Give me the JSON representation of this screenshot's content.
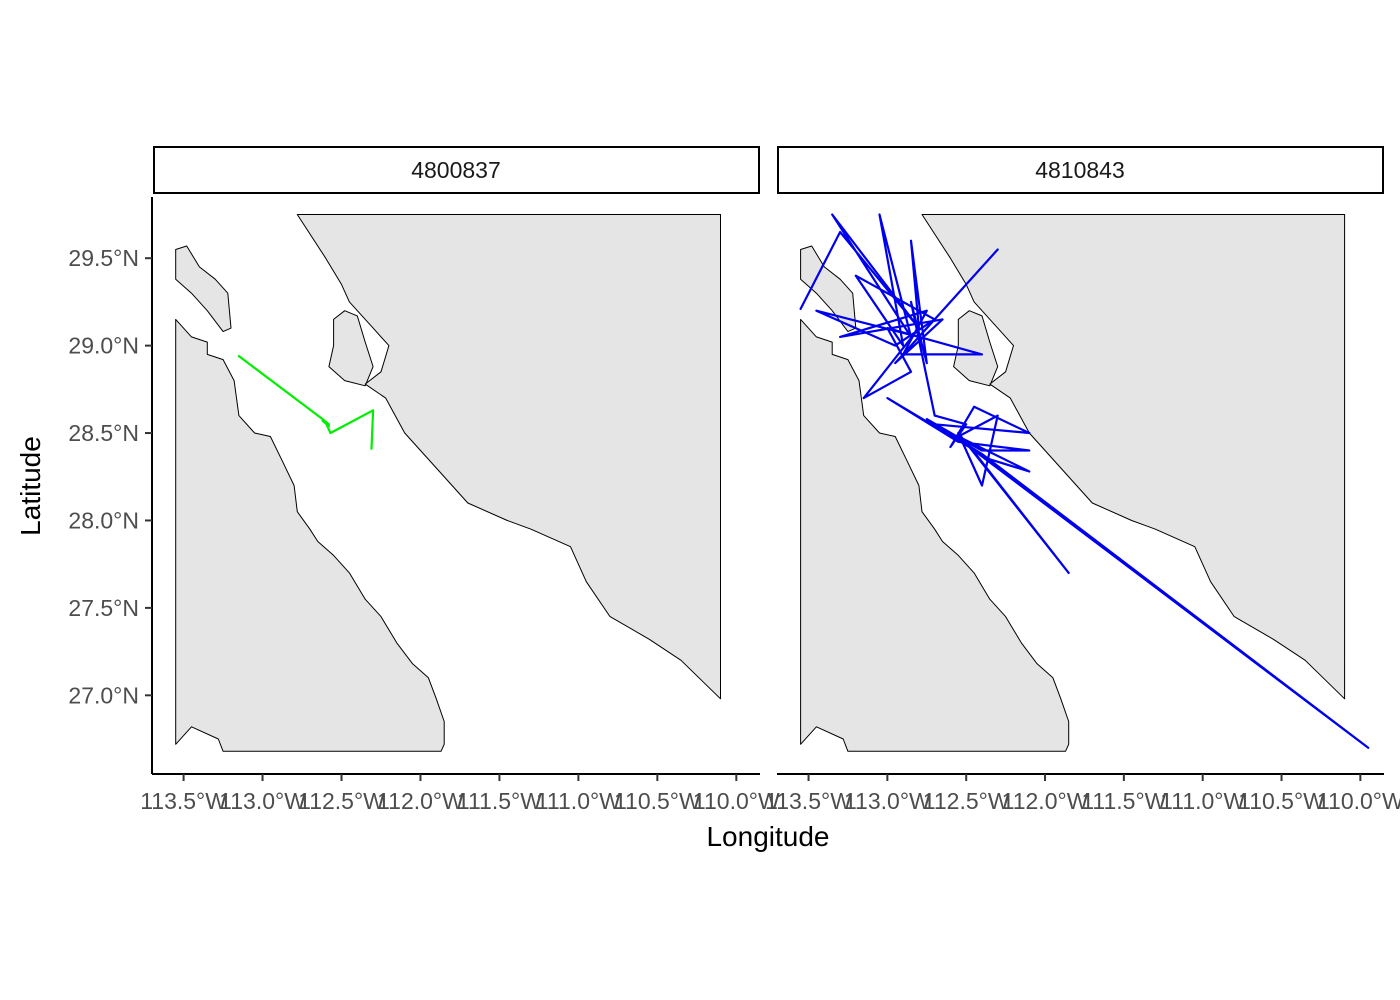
{
  "axes": {
    "xlabel": "Longitude",
    "ylabel": "Latitude",
    "x_ticks": [
      {
        "value": -113.5,
        "label": "113.5°W"
      },
      {
        "value": -113.0,
        "label": "113.0°W"
      },
      {
        "value": -112.5,
        "label": "112.5°W"
      },
      {
        "value": -112.0,
        "label": "112.0°W"
      },
      {
        "value": -111.5,
        "label": "111.5°W"
      },
      {
        "value": -111.0,
        "label": "111.0°W"
      },
      {
        "value": -110.5,
        "label": "110.5°W"
      },
      {
        "value": -110.0,
        "label": "110.0°W"
      }
    ],
    "y_ticks": [
      {
        "value": 29.5,
        "label": "29.5°N"
      },
      {
        "value": 29.0,
        "label": "29.0°N"
      },
      {
        "value": 28.5,
        "label": "28.5°N"
      },
      {
        "value": 28.0,
        "label": "28.0°N"
      },
      {
        "value": 27.5,
        "label": "27.5°N"
      },
      {
        "value": 27.0,
        "label": "27.0°N"
      }
    ],
    "xlim": [
      -113.7,
      -109.85
    ],
    "ylim": [
      26.55,
      29.85
    ]
  },
  "panels": [
    {
      "id": "4800837",
      "strip_label": "4800837",
      "track_color": "#00ee00",
      "track": [
        [
          -113.15,
          28.94
        ],
        [
          -112.62,
          28.58
        ],
        [
          -112.58,
          28.55
        ],
        [
          -112.62,
          28.57
        ],
        [
          -112.58,
          28.54
        ],
        [
          -112.6,
          28.56
        ],
        [
          -112.57,
          28.5
        ],
        [
          -112.3,
          28.63
        ],
        [
          -112.31,
          28.41
        ]
      ]
    },
    {
      "id": "4810843",
      "strip_label": "4810843",
      "track_color": "#0000ee",
      "track": [
        [
          -113.55,
          29.21
        ],
        [
          -113.3,
          29.65
        ],
        [
          -112.8,
          29.1
        ],
        [
          -113.35,
          29.75
        ],
        [
          -112.85,
          29.05
        ],
        [
          -113.05,
          29.75
        ],
        [
          -112.9,
          29.0
        ],
        [
          -113.2,
          29.4
        ],
        [
          -112.7,
          29.15
        ],
        [
          -112.95,
          29.0
        ],
        [
          -113.45,
          29.2
        ],
        [
          -112.8,
          29.05
        ],
        [
          -112.3,
          29.55
        ],
        [
          -112.95,
          28.9
        ],
        [
          -112.65,
          29.15
        ],
        [
          -113.3,
          29.05
        ],
        [
          -112.75,
          29.2
        ],
        [
          -112.9,
          28.95
        ],
        [
          -112.4,
          28.95
        ],
        [
          -113.0,
          29.1
        ],
        [
          -112.85,
          28.85
        ],
        [
          -113.15,
          28.7
        ],
        [
          -112.8,
          29.1
        ],
        [
          -112.85,
          29.6
        ],
        [
          -112.75,
          28.9
        ],
        [
          -112.85,
          29.25
        ],
        [
          -112.7,
          28.6
        ],
        [
          -112.5,
          28.55
        ],
        [
          -112.6,
          28.42
        ],
        [
          -112.45,
          28.65
        ],
        [
          -112.1,
          28.5
        ],
        [
          -112.7,
          28.55
        ],
        [
          -112.4,
          28.4
        ],
        [
          -112.1,
          28.4
        ],
        [
          -112.55,
          28.45
        ],
        [
          -113.0,
          28.7
        ],
        [
          -112.35,
          28.35
        ],
        [
          -112.1,
          28.28
        ],
        [
          -112.55,
          28.48
        ],
        [
          -112.3,
          28.6
        ],
        [
          -112.4,
          28.2
        ],
        [
          -112.55,
          28.5
        ],
        [
          -111.85,
          27.7
        ],
        [
          -112.5,
          28.45
        ],
        [
          -112.75,
          28.58
        ],
        [
          -112.4,
          28.38
        ],
        [
          -109.95,
          26.7
        ],
        [
          -112.45,
          28.4
        ]
      ]
    }
  ],
  "land_polygons": {
    "baja": [
      [
        -113.55,
        29.15
      ],
      [
        -113.45,
        29.05
      ],
      [
        -113.35,
        29.02
      ],
      [
        -113.35,
        28.95
      ],
      [
        -113.25,
        28.92
      ],
      [
        -113.18,
        28.8
      ],
      [
        -113.15,
        28.6
      ],
      [
        -113.05,
        28.5
      ],
      [
        -112.95,
        28.48
      ],
      [
        -112.88,
        28.35
      ],
      [
        -112.8,
        28.2
      ],
      [
        -112.78,
        28.05
      ],
      [
        -112.7,
        27.95
      ],
      [
        -112.65,
        27.88
      ],
      [
        -112.55,
        27.8
      ],
      [
        -112.45,
        27.7
      ],
      [
        -112.35,
        27.55
      ],
      [
        -112.25,
        27.45
      ],
      [
        -112.15,
        27.3
      ],
      [
        -112.05,
        27.18
      ],
      [
        -111.95,
        27.1
      ],
      [
        -111.9,
        26.98
      ],
      [
        -111.85,
        26.85
      ],
      [
        -111.85,
        26.72
      ],
      [
        -111.87,
        26.68
      ],
      [
        -113.25,
        26.68
      ],
      [
        -113.28,
        26.75
      ],
      [
        -113.45,
        26.82
      ],
      [
        -113.55,
        26.72
      ],
      [
        -113.55,
        29.15
      ]
    ],
    "baja_north_islands": [
      [
        -113.55,
        29.55
      ],
      [
        -113.48,
        29.57
      ],
      [
        -113.4,
        29.45
      ],
      [
        -113.3,
        29.38
      ],
      [
        -113.22,
        29.3
      ],
      [
        -113.2,
        29.1
      ],
      [
        -113.25,
        29.08
      ],
      [
        -113.35,
        29.2
      ],
      [
        -113.45,
        29.3
      ],
      [
        -113.55,
        29.38
      ],
      [
        -113.55,
        29.55
      ]
    ],
    "tiburon": [
      [
        -112.55,
        29.15
      ],
      [
        -112.48,
        29.2
      ],
      [
        -112.4,
        29.17
      ],
      [
        -112.35,
        29.02
      ],
      [
        -112.3,
        28.88
      ],
      [
        -112.35,
        28.77
      ],
      [
        -112.48,
        28.8
      ],
      [
        -112.58,
        28.88
      ],
      [
        -112.55,
        29.0
      ],
      [
        -112.55,
        29.15
      ]
    ],
    "sonora": [
      [
        -112.78,
        29.75
      ],
      [
        -110.1,
        29.75
      ],
      [
        -110.1,
        26.98
      ],
      [
        -110.35,
        27.2
      ],
      [
        -110.55,
        27.32
      ],
      [
        -110.8,
        27.45
      ],
      [
        -110.95,
        27.65
      ],
      [
        -111.05,
        27.85
      ],
      [
        -111.3,
        27.95
      ],
      [
        -111.45,
        28.0
      ],
      [
        -111.7,
        28.1
      ],
      [
        -111.9,
        28.3
      ],
      [
        -112.1,
        28.5
      ],
      [
        -112.22,
        28.7
      ],
      [
        -112.35,
        28.78
      ],
      [
        -112.25,
        28.85
      ],
      [
        -112.2,
        29.0
      ],
      [
        -112.3,
        29.1
      ],
      [
        -112.45,
        29.25
      ],
      [
        -112.5,
        29.35
      ],
      [
        -112.6,
        29.5
      ],
      [
        -112.78,
        29.75
      ]
    ]
  }
}
